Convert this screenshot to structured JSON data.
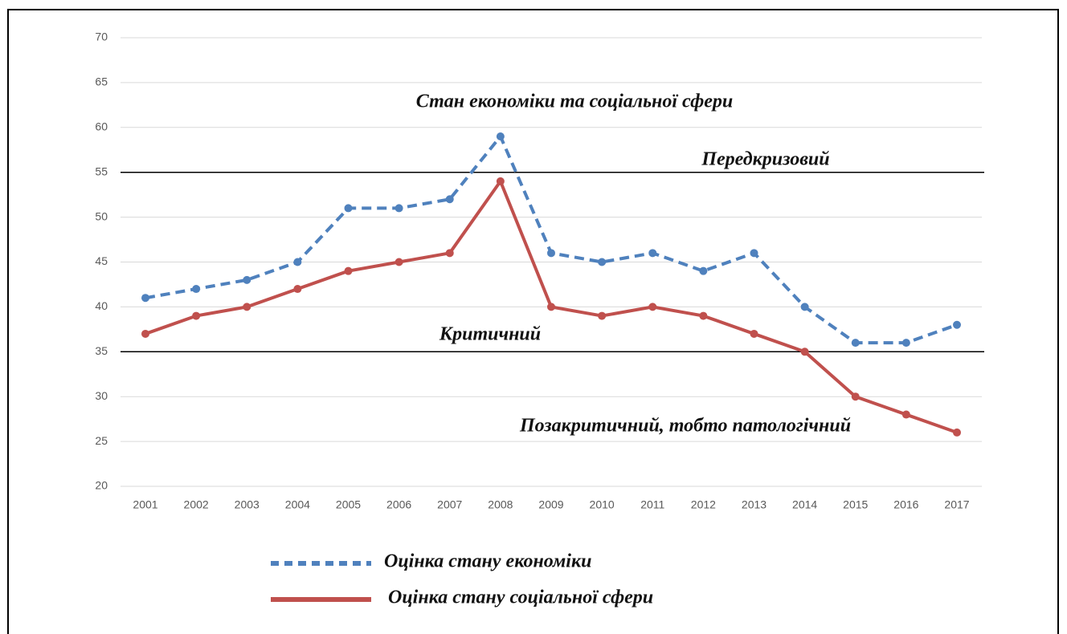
{
  "chart_data": {
    "type": "line",
    "categories": [
      "2001",
      "2002",
      "2003",
      "2004",
      "2005",
      "2006",
      "2007",
      "2008",
      "2009",
      "2010",
      "2011",
      "2012",
      "2013",
      "2014",
      "2015",
      "2016",
      "2017"
    ],
    "series": [
      {
        "name": "Оцінка стану економіки",
        "color": "#4f81bd",
        "dash": true,
        "values": [
          41,
          42,
          43,
          45,
          51,
          51,
          52,
          59,
          46,
          45,
          46,
          44,
          46,
          40,
          36,
          36,
          38
        ]
      },
      {
        "name": "Оцінка стану соціальної сфери",
        "color": "#c0504d",
        "dash": false,
        "values": [
          37,
          39,
          40,
          42,
          44,
          45,
          46,
          54,
          40,
          39,
          40,
          39,
          37,
          35,
          30,
          28,
          26
        ]
      }
    ],
    "ylim": [
      20,
      70
    ],
    "yticks": [
      20,
      25,
      30,
      35,
      40,
      45,
      50,
      55,
      60,
      65,
      70
    ],
    "grid": true,
    "reference_lines": [
      55,
      35
    ],
    "annotations": [
      "Стан економіки та соціальної сфери",
      "Передкризовий",
      "Критичний",
      "Позакритичний, тобто патологічний"
    ]
  }
}
